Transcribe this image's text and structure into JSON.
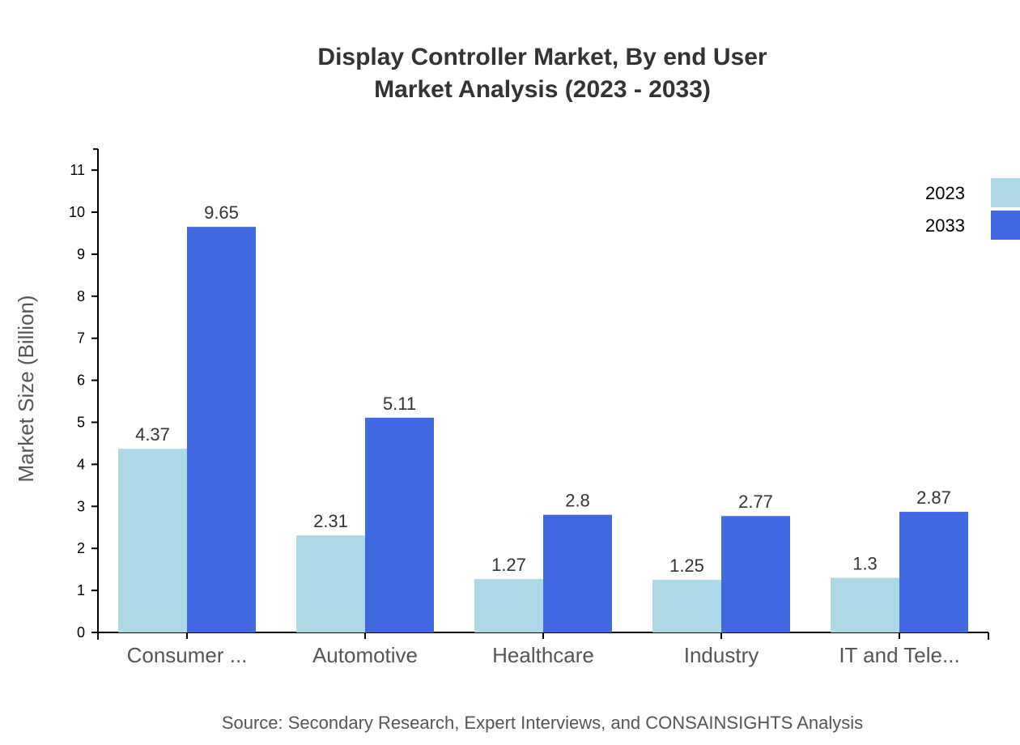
{
  "chart_data": {
    "type": "bar",
    "title": [
      "Display Controller Market, By end User",
      "Market Analysis (2023 - 2033)"
    ],
    "xlabel": "",
    "ylabel": "Market Size (Billion)",
    "ylim": [
      0,
      11.5
    ],
    "yticks": [
      0,
      1,
      2,
      3,
      4,
      5,
      6,
      7,
      8,
      9,
      10,
      11
    ],
    "categories": [
      "Consumer ...",
      "Automotive",
      "Healthcare",
      "Industry",
      "IT and Tele..."
    ],
    "series": [
      {
        "name": "2023",
        "color": "#ADD8E6",
        "values": [
          4.37,
          2.31,
          1.27,
          1.25,
          1.3
        ]
      },
      {
        "name": "2033",
        "color": "#4169E1",
        "values": [
          9.65,
          5.11,
          2.8,
          2.77,
          2.87
        ]
      }
    ],
    "legend_position": "top-right",
    "grid": false,
    "source": "Source: Secondary Research, Expert Interviews, and CONSAINSIGHTS Analysis"
  }
}
